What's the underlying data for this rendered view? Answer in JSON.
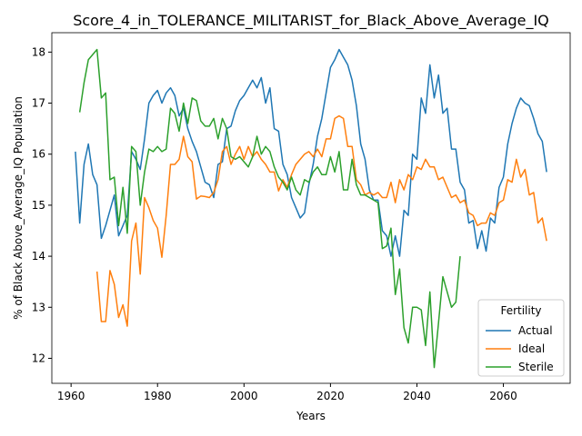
{
  "chart_data": {
    "type": "line",
    "title": "Score_4_in_TOLERANCE_MILITARIST_for_Black_Above_Average_IQ",
    "x_label": "Years",
    "y_label": "% of Black Above_Average_IQ Population",
    "legend_title": "Fertility",
    "legend_position": "lower right",
    "x": [
      1961,
      1962,
      1963,
      1964,
      1965,
      1966,
      1967,
      1968,
      1969,
      1970,
      1971,
      1972,
      1973,
      1974,
      1975,
      1976,
      1977,
      1978,
      1979,
      1980,
      1981,
      1982,
      1983,
      1984,
      1985,
      1986,
      1987,
      1988,
      1989,
      1990,
      1991,
      1992,
      1993,
      1994,
      1995,
      1996,
      1997,
      1998,
      1999,
      2000,
      2001,
      2002,
      2003,
      2004,
      2005,
      2006,
      2007,
      2008,
      2009,
      2010,
      2011,
      2012,
      2013,
      2014,
      2015,
      2016,
      2017,
      2018,
      2019,
      2020,
      2021,
      2022,
      2023,
      2024,
      2025,
      2026,
      2027,
      2028,
      2029,
      2030,
      2031,
      2032,
      2033,
      2034,
      2035,
      2036,
      2037,
      2038,
      2039,
      2040,
      2041,
      2042,
      2043,
      2044,
      2045,
      2046,
      2047,
      2048,
      2049,
      2050,
      2051,
      2052,
      2053,
      2054,
      2055,
      2056,
      2057,
      2058,
      2059,
      2060,
      2061,
      2062,
      2063,
      2064,
      2065,
      2066,
      2067,
      2068,
      2069,
      2070
    ],
    "series": [
      {
        "name": "Actual",
        "color": "#1f77b4",
        "values": [
          16.05,
          14.65,
          15.8,
          16.2,
          15.6,
          15.4,
          14.35,
          14.6,
          14.9,
          15.2,
          14.4,
          14.6,
          14.8,
          16.05,
          15.9,
          15.7,
          16.3,
          17.0,
          17.15,
          17.25,
          17.0,
          17.2,
          17.3,
          17.15,
          16.75,
          16.9,
          16.5,
          16.25,
          16.05,
          15.75,
          15.45,
          15.4,
          15.15,
          15.8,
          15.85,
          16.5,
          16.55,
          16.85,
          17.05,
          17.15,
          17.3,
          17.45,
          17.3,
          17.5,
          17.0,
          17.3,
          16.5,
          16.45,
          15.8,
          15.6,
          15.15,
          14.95,
          14.75,
          14.85,
          15.4,
          15.8,
          16.35,
          16.7,
          17.2,
          17.7,
          17.85,
          18.05,
          17.9,
          17.75,
          17.45,
          16.95,
          16.2,
          15.9,
          15.3,
          15.1,
          15.1,
          14.5,
          14.4,
          14.0,
          14.4,
          14.0,
          14.9,
          14.8,
          16.0,
          15.9,
          17.1,
          16.8,
          17.75,
          17.1,
          17.55,
          16.8,
          16.9,
          16.1,
          16.1,
          15.45,
          15.3,
          14.65,
          14.7,
          14.15,
          14.5,
          14.1,
          14.75,
          14.65,
          15.35,
          15.55,
          16.2,
          16.6,
          16.9,
          17.1,
          17.0,
          16.95,
          16.7,
          16.4,
          16.25,
          15.65
        ]
      },
      {
        "name": "Ideal",
        "color": "#ff7f0e",
        "values": [
          null,
          null,
          null,
          null,
          null,
          13.7,
          12.72,
          12.72,
          13.72,
          13.45,
          12.8,
          13.05,
          12.63,
          14.3,
          14.65,
          13.65,
          15.15,
          14.95,
          14.7,
          14.55,
          13.98,
          14.8,
          15.8,
          15.8,
          15.9,
          16.35,
          15.95,
          15.85,
          15.12,
          15.18,
          15.17,
          15.15,
          15.25,
          15.5,
          16.05,
          16.15,
          15.8,
          16.0,
          16.15,
          15.9,
          16.15,
          15.95,
          16.05,
          15.9,
          15.8,
          15.65,
          15.65,
          15.28,
          15.5,
          15.35,
          15.6,
          15.8,
          15.9,
          16.0,
          16.05,
          15.95,
          16.1,
          15.95,
          16.3,
          16.3,
          16.7,
          16.75,
          16.7,
          16.15,
          16.15,
          15.5,
          15.4,
          15.2,
          15.25,
          15.2,
          15.25,
          15.15,
          15.15,
          15.45,
          15.05,
          15.5,
          15.3,
          15.6,
          15.5,
          15.75,
          15.7,
          15.9,
          15.75,
          15.75,
          15.5,
          15.55,
          15.35,
          15.15,
          15.2,
          15.05,
          15.1,
          14.85,
          14.8,
          14.6,
          14.65,
          14.65,
          14.85,
          14.8,
          15.05,
          15.1,
          15.5,
          15.45,
          15.9,
          15.55,
          15.7,
          15.2,
          15.25,
          14.65,
          14.75,
          14.3
        ]
      },
      {
        "name": "Sterile",
        "color": "#2ca02c",
        "values": [
          null,
          16.82,
          17.4,
          17.85,
          17.95,
          18.05,
          17.1,
          17.2,
          15.5,
          15.55,
          14.6,
          15.35,
          14.45,
          16.15,
          16.05,
          15.0,
          15.65,
          16.1,
          16.05,
          16.15,
          16.05,
          16.1,
          16.9,
          16.8,
          16.45,
          17.0,
          16.6,
          17.1,
          17.05,
          16.65,
          16.55,
          16.55,
          16.7,
          16.3,
          16.7,
          16.5,
          15.95,
          15.9,
          15.95,
          15.85,
          15.75,
          15.95,
          16.35,
          16.0,
          16.15,
          16.05,
          15.75,
          15.55,
          15.45,
          15.3,
          15.55,
          15.3,
          15.2,
          15.5,
          15.45,
          15.65,
          15.75,
          15.6,
          15.6,
          15.95,
          15.65,
          16.05,
          15.3,
          15.3,
          15.9,
          15.4,
          15.2,
          15.2,
          15.15,
          15.1,
          15.05,
          14.15,
          14.2,
          14.55,
          13.25,
          13.75,
          12.6,
          12.3,
          13.0,
          13.0,
          12.95,
          12.25,
          13.3,
          11.82,
          12.7,
          13.6,
          13.3,
          13.0,
          13.1,
          14.0,
          null,
          null,
          null,
          null,
          null,
          null,
          null,
          null,
          null,
          null,
          null,
          null,
          null,
          null,
          null,
          null,
          null,
          null,
          null,
          null
        ]
      }
    ],
    "xlim": [
      1955.55,
      2075.45
    ],
    "xticks": [
      1960,
      1980,
      2000,
      2020,
      2040,
      2060
    ],
    "ylim": [
      11.51,
      18.38
    ],
    "yticks": [
      12,
      13,
      14,
      15,
      16,
      17,
      18
    ],
    "grid": false
  }
}
